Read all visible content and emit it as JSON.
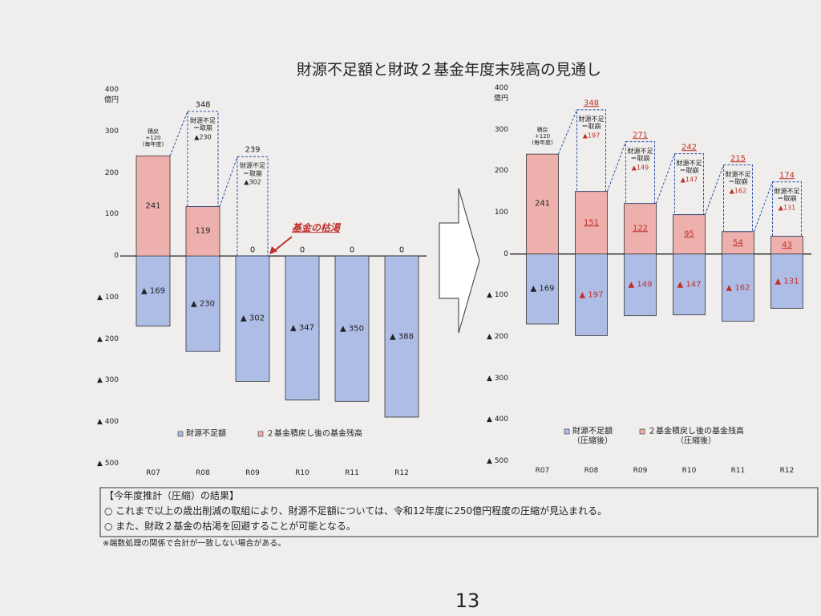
{
  "title": "財源不足額と財政２基金年度末残高の見通し",
  "chart_data": [
    {
      "type": "bar",
      "y_unit": "億円",
      "categories": [
        "R07",
        "R08",
        "R09",
        "R10",
        "R11",
        "R12"
      ],
      "ylim": [
        -500,
        400
      ],
      "yticks": [
        400,
        300,
        200,
        100,
        0,
        {
          "value": -100,
          "label": "▲ 100"
        },
        {
          "value": -200,
          "label": "▲ 200"
        },
        {
          "value": -300,
          "label": "▲ 300"
        },
        {
          "value": -400,
          "label": "▲ 400"
        },
        {
          "value": -500,
          "label": "▲ 500"
        }
      ],
      "series": [
        {
          "name": "財源不足額",
          "color": "#aebde6",
          "values": [
            -169,
            -230,
            -302,
            -347,
            -350,
            -388
          ],
          "value_labels": [
            "▲ 169",
            "▲ 230",
            "▲ 302",
            "▲ 347",
            "▲ 350",
            "▲ 388"
          ]
        },
        {
          "name": "２基金積戻し後の基金残高",
          "color": "#eeb0ad",
          "values": [
            241,
            119,
            0,
            0,
            0,
            0
          ]
        }
      ],
      "replenish_note": "積戻\n+120\n(毎年度)",
      "withdrawals": [
        null,
        {
          "total": 348,
          "text": "財源不足\n＝取崩",
          "drawdown": "▲230"
        },
        {
          "total": 239,
          "text": "財源不足\n＝取崩",
          "drawdown": "▲302"
        },
        null,
        null,
        null
      ],
      "depletion_note": "基金の枯渇"
    },
    {
      "type": "bar",
      "y_unit": "億円",
      "categories": [
        "R07",
        "R08",
        "R09",
        "R10",
        "R11",
        "R12"
      ],
      "ylim": [
        -500,
        400
      ],
      "yticks": [
        400,
        300,
        200,
        100,
        0,
        {
          "value": -100,
          "label": "▲ 100"
        },
        {
          "value": -200,
          "label": "▲ 200"
        },
        {
          "value": -300,
          "label": "▲ 300"
        },
        {
          "value": -400,
          "label": "▲ 400"
        },
        {
          "value": -500,
          "label": "▲ 500"
        }
      ],
      "highlight_color": "#c0302a",
      "series": [
        {
          "name": "財源不足額\n（圧縮後）",
          "color": "#aebde6",
          "values": [
            -169,
            -197,
            -149,
            -147,
            -162,
            -131
          ],
          "value_labels": [
            "▲ 169",
            "▲ 197",
            "▲ 149",
            "▲ 147",
            "▲ 162",
            "▲ 131"
          ]
        },
        {
          "name": "２基金積戻し後の基金残高\n（圧縮後）",
          "color": "#eeb0ad",
          "values": [
            241,
            151,
            122,
            95,
            54,
            43
          ]
        }
      ],
      "replenish_note": "積戻\n+120\n(毎年度)",
      "withdrawals": [
        null,
        {
          "total": 348,
          "text": "財源不足\n＝取崩",
          "drawdown": "▲197"
        },
        {
          "total": 271,
          "text": "財源不足\n＝取崩",
          "drawdown": "▲149"
        },
        {
          "total": 242,
          "text": "財源不足\n＝取崩",
          "drawdown": "▲147"
        },
        {
          "total": 215,
          "text": "財源不足\n＝取崩",
          "drawdown": "▲162"
        },
        {
          "total": 174,
          "text": "財源不足\n＝取崩",
          "drawdown": "▲131"
        }
      ]
    }
  ],
  "summary": {
    "heading": "【今年度推計（圧縮）の結果】",
    "items": [
      "○ これまで以上の歳出削減の取組により、財源不足額については、令和12年度に250億円程度の圧縮が見込まれる。",
      "○ また、財政２基金の枯渇を回避することが可能となる。"
    ]
  },
  "footnote": "※端数処理の関係で合計が一致しない場合がある。",
  "page_number": "13"
}
